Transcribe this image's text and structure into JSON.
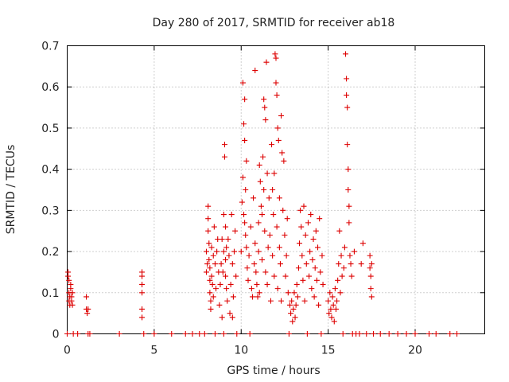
{
  "chart_data": {
    "type": "scatter",
    "title": "Day 280 of 2017, SRMTID for receiver ab18",
    "xlabel": "GPS time / hours",
    "ylabel": "SRMTID / TECUs",
    "xlim": [
      0,
      24
    ],
    "ylim": [
      0,
      0.7
    ],
    "xticks": [
      0,
      5,
      10,
      15,
      20
    ],
    "xtick_labels": [
      "0",
      "5",
      "10",
      "15",
      "20"
    ],
    "yticks": [
      0,
      0.1,
      0.2,
      0.3,
      0.4,
      0.5,
      0.6,
      0.7
    ],
    "ytick_labels": [
      "0",
      "0.1",
      "0.2",
      "0.3",
      "0.4",
      "0.5",
      "0.6",
      "0.7"
    ],
    "grid": true,
    "marker": "+",
    "color": "#dd0000",
    "series": [
      {
        "name": "SRMTID",
        "points": [
          [
            0.0,
            0.0
          ],
          [
            0.05,
            0.15
          ],
          [
            0.05,
            0.14
          ],
          [
            0.1,
            0.13
          ],
          [
            0.1,
            0.1
          ],
          [
            0.1,
            0.08
          ],
          [
            0.15,
            0.09
          ],
          [
            0.15,
            0.07
          ],
          [
            0.2,
            0.12
          ],
          [
            0.2,
            0.11
          ],
          [
            0.25,
            0.09
          ],
          [
            0.25,
            0.08
          ],
          [
            0.3,
            0.07
          ],
          [
            0.3,
            0.1
          ],
          [
            0.35,
            0.0
          ],
          [
            0.6,
            0.0
          ],
          [
            1.1,
            0.09
          ],
          [
            1.1,
            0.06
          ],
          [
            1.15,
            0.05
          ],
          [
            1.2,
            0.06
          ],
          [
            1.2,
            0.0
          ],
          [
            1.3,
            0.0
          ],
          [
            3.0,
            0.0
          ],
          [
            4.3,
            0.15
          ],
          [
            4.3,
            0.14
          ],
          [
            4.3,
            0.12
          ],
          [
            4.3,
            0.1
          ],
          [
            4.3,
            0.06
          ],
          [
            4.3,
            0.04
          ],
          [
            4.4,
            0.0
          ],
          [
            5.0,
            0.0
          ],
          [
            6.0,
            0.0
          ],
          [
            6.8,
            0.0
          ],
          [
            7.2,
            0.0
          ],
          [
            7.6,
            0.0
          ],
          [
            7.9,
            0.0
          ],
          [
            8.0,
            0.2
          ],
          [
            8.0,
            0.15
          ],
          [
            8.05,
            0.17
          ],
          [
            8.1,
            0.31
          ],
          [
            8.1,
            0.28
          ],
          [
            8.1,
            0.25
          ],
          [
            8.15,
            0.22
          ],
          [
            8.15,
            0.18
          ],
          [
            8.2,
            0.16
          ],
          [
            8.2,
            0.13
          ],
          [
            8.2,
            0.1
          ],
          [
            8.25,
            0.08
          ],
          [
            8.25,
            0.06
          ],
          [
            8.3,
            0.21
          ],
          [
            8.3,
            0.14
          ],
          [
            8.35,
            0.12
          ],
          [
            8.4,
            0.19
          ],
          [
            8.4,
            0.09
          ],
          [
            8.45,
            0.26
          ],
          [
            8.5,
            0.17
          ],
          [
            8.5,
            0.0
          ],
          [
            8.55,
            0.11
          ],
          [
            8.6,
            0.2
          ],
          [
            8.65,
            0.23
          ],
          [
            8.7,
            0.15
          ],
          [
            8.75,
            0.07
          ],
          [
            8.8,
            0.12
          ],
          [
            8.85,
            0.17
          ],
          [
            8.9,
            0.23
          ],
          [
            8.9,
            0.04
          ],
          [
            8.95,
            0.15
          ],
          [
            9.0,
            0.29
          ],
          [
            9.0,
            0.2
          ],
          [
            9.0,
            0.0
          ],
          [
            9.05,
            0.46
          ],
          [
            9.05,
            0.43
          ],
          [
            9.1,
            0.26
          ],
          [
            9.1,
            0.18
          ],
          [
            9.1,
            0.14
          ],
          [
            9.15,
            0.21
          ],
          [
            9.15,
            0.11
          ],
          [
            9.2,
            0.08
          ],
          [
            9.25,
            0.23
          ],
          [
            9.3,
            0.19
          ],
          [
            9.35,
            0.05
          ],
          [
            9.4,
            0.12
          ],
          [
            9.45,
            0.29
          ],
          [
            9.5,
            0.17
          ],
          [
            9.5,
            0.04
          ],
          [
            9.55,
            0.09
          ],
          [
            9.6,
            0.2
          ],
          [
            9.65,
            0.25
          ],
          [
            9.7,
            0.14
          ],
          [
            9.75,
            0.0
          ],
          [
            10.0,
            0.2
          ],
          [
            10.05,
            0.32
          ],
          [
            10.1,
            0.61
          ],
          [
            10.1,
            0.38
          ],
          [
            10.15,
            0.51
          ],
          [
            10.15,
            0.29
          ],
          [
            10.2,
            0.57
          ],
          [
            10.2,
            0.47
          ],
          [
            10.2,
            0.27
          ],
          [
            10.25,
            0.35
          ],
          [
            10.25,
            0.24
          ],
          [
            10.3,
            0.42
          ],
          [
            10.3,
            0.21
          ],
          [
            10.35,
            0.16
          ],
          [
            10.4,
            0.13
          ],
          [
            10.45,
            0.19
          ],
          [
            10.5,
            0.0
          ],
          [
            10.55,
            0.26
          ],
          [
            10.6,
            0.11
          ],
          [
            10.65,
            0.09
          ],
          [
            10.7,
            0.33
          ],
          [
            10.75,
            0.17
          ],
          [
            10.8,
            0.64
          ],
          [
            10.8,
            0.22
          ],
          [
            10.85,
            0.15
          ],
          [
            10.9,
            0.12
          ],
          [
            10.95,
            0.09
          ],
          [
            11.0,
            0.27
          ],
          [
            11.0,
            0.2
          ],
          [
            11.05,
            0.41
          ],
          [
            11.05,
            0.1
          ],
          [
            11.1,
            0.37
          ],
          [
            11.15,
            0.31
          ],
          [
            11.2,
            0.29
          ],
          [
            11.2,
            0.18
          ],
          [
            11.25,
            0.43
          ],
          [
            11.3,
            0.57
          ],
          [
            11.3,
            0.35
          ],
          [
            11.35,
            0.55
          ],
          [
            11.35,
            0.25
          ],
          [
            11.4,
            0.52
          ],
          [
            11.4,
            0.15
          ],
          [
            11.45,
            0.66
          ],
          [
            11.5,
            0.39
          ],
          [
            11.5,
            0.12
          ],
          [
            11.55,
            0.21
          ],
          [
            11.6,
            0.33
          ],
          [
            11.65,
            0.24
          ],
          [
            11.7,
            0.08
          ],
          [
            11.75,
            0.46
          ],
          [
            11.8,
            0.35
          ],
          [
            11.8,
            0.19
          ],
          [
            11.85,
            0.29
          ],
          [
            11.9,
            0.39
          ],
          [
            11.9,
            0.14
          ],
          [
            11.95,
            0.68
          ],
          [
            12.0,
            0.67
          ],
          [
            12.0,
            0.61
          ],
          [
            12.05,
            0.58
          ],
          [
            12.05,
            0.26
          ],
          [
            12.1,
            0.5
          ],
          [
            12.1,
            0.11
          ],
          [
            12.15,
            0.47
          ],
          [
            12.2,
            0.33
          ],
          [
            12.2,
            0.21
          ],
          [
            12.25,
            0.17
          ],
          [
            12.3,
            0.53
          ],
          [
            12.3,
            0.08
          ],
          [
            12.35,
            0.44
          ],
          [
            12.4,
            0.3
          ],
          [
            12.45,
            0.42
          ],
          [
            12.5,
            0.24
          ],
          [
            12.55,
            0.14
          ],
          [
            12.6,
            0.19
          ],
          [
            12.65,
            0.28
          ],
          [
            12.7,
            0.1
          ],
          [
            12.75,
            0.0
          ],
          [
            12.8,
            0.07
          ],
          [
            12.85,
            0.05
          ],
          [
            12.9,
            0.08
          ],
          [
            12.95,
            0.03
          ],
          [
            13.0,
            0.06
          ],
          [
            13.05,
            0.1
          ],
          [
            13.1,
            0.04
          ],
          [
            13.15,
            0.07
          ],
          [
            13.2,
            0.12
          ],
          [
            13.25,
            0.09
          ],
          [
            13.3,
            0.16
          ],
          [
            13.35,
            0.22
          ],
          [
            13.4,
            0.3
          ],
          [
            13.45,
            0.26
          ],
          [
            13.5,
            0.19
          ],
          [
            13.55,
            0.13
          ],
          [
            13.6,
            0.31
          ],
          [
            13.65,
            0.08
          ],
          [
            13.7,
            0.24
          ],
          [
            13.75,
            0.17
          ],
          [
            13.8,
            0.0
          ],
          [
            13.85,
            0.27
          ],
          [
            13.9,
            0.14
          ],
          [
            13.95,
            0.2
          ],
          [
            14.0,
            0.29
          ],
          [
            14.05,
            0.11
          ],
          [
            14.1,
            0.18
          ],
          [
            14.15,
            0.23
          ],
          [
            14.2,
            0.09
          ],
          [
            14.25,
            0.16
          ],
          [
            14.3,
            0.25
          ],
          [
            14.35,
            0.13
          ],
          [
            14.4,
            0.21
          ],
          [
            14.45,
            0.07
          ],
          [
            14.5,
            0.28
          ],
          [
            14.55,
            0.15
          ],
          [
            14.6,
            0.0
          ],
          [
            14.65,
            0.19
          ],
          [
            14.7,
            0.12
          ],
          [
            15.0,
            0.08
          ],
          [
            15.05,
            0.05
          ],
          [
            15.1,
            0.1
          ],
          [
            15.15,
            0.06
          ],
          [
            15.2,
            0.04
          ],
          [
            15.25,
            0.09
          ],
          [
            15.3,
            0.07
          ],
          [
            15.35,
            0.03
          ],
          [
            15.4,
            0.11
          ],
          [
            15.45,
            0.06
          ],
          [
            15.5,
            0.08
          ],
          [
            15.55,
            0.13
          ],
          [
            15.6,
            0.17
          ],
          [
            15.65,
            0.25
          ],
          [
            15.7,
            0.1
          ],
          [
            15.75,
            0.19
          ],
          [
            15.8,
            0.14
          ],
          [
            15.85,
            0.0
          ],
          [
            15.9,
            0.16
          ],
          [
            15.95,
            0.21
          ],
          [
            16.0,
            0.68
          ],
          [
            16.05,
            0.62
          ],
          [
            16.05,
            0.58
          ],
          [
            16.1,
            0.55
          ],
          [
            16.1,
            0.46
          ],
          [
            16.15,
            0.4
          ],
          [
            16.15,
            0.35
          ],
          [
            16.2,
            0.31
          ],
          [
            16.2,
            0.27
          ],
          [
            16.25,
            0.19
          ],
          [
            16.3,
            0.17
          ],
          [
            16.35,
            0.14
          ],
          [
            16.4,
            0.0
          ],
          [
            16.5,
            0.2
          ],
          [
            16.6,
            0.0
          ],
          [
            16.8,
            0.0
          ],
          [
            16.9,
            0.17
          ],
          [
            17.0,
            0.22
          ],
          [
            17.2,
            0.0
          ],
          [
            17.4,
            0.19
          ],
          [
            17.4,
            0.16
          ],
          [
            17.45,
            0.14
          ],
          [
            17.45,
            0.11
          ],
          [
            17.5,
            0.09
          ],
          [
            17.5,
            0.17
          ],
          [
            17.6,
            0.0
          ],
          [
            18.0,
            0.0
          ],
          [
            18.5,
            0.0
          ],
          [
            19.0,
            0.0
          ],
          [
            19.5,
            0.0
          ],
          [
            20.0,
            0.0
          ],
          [
            20.8,
            0.0
          ],
          [
            21.2,
            0.0
          ],
          [
            22.0,
            0.0
          ],
          [
            22.4,
            0.0
          ]
        ]
      }
    ]
  }
}
